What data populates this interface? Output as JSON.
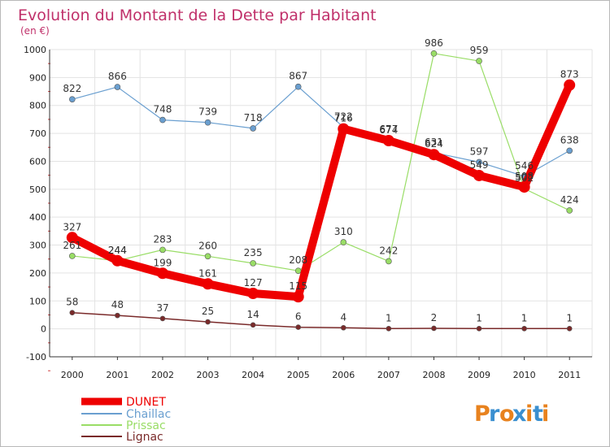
{
  "chart_data": {
    "type": "line",
    "title": "Evolution du Montant de la Dette par Habitant",
    "subtitle": "(en €)",
    "xlabel": "",
    "ylabel": "",
    "x": [
      "2000",
      "2001",
      "2002",
      "2003",
      "2004",
      "2005",
      "2006",
      "2007",
      "2008",
      "2009",
      "2010",
      "2011"
    ],
    "ylim": [
      -100,
      1000
    ],
    "yticks": [
      -100,
      0,
      100,
      200,
      300,
      400,
      500,
      600,
      700,
      800,
      900,
      1000
    ],
    "grid": true,
    "legend": "bottom-left",
    "series": [
      {
        "name": "DUNET",
        "color": "#ee0000",
        "values": [
          327,
          244,
          199,
          161,
          127,
          115,
          716,
          674,
          624,
          549,
          508,
          873
        ]
      },
      {
        "name": "Chaillac",
        "color": "#6a9fd0",
        "values": [
          822,
          866,
          748,
          739,
          718,
          867,
          722,
          677,
          631,
          597,
          546,
          638
        ]
      },
      {
        "name": "Prissac",
        "color": "#99dd66",
        "values": [
          261,
          244,
          283,
          260,
          235,
          208,
          310,
          242,
          986,
          959,
          502,
          424
        ]
      },
      {
        "name": "Lignac",
        "color": "#7a2a2a",
        "values": [
          58,
          48,
          37,
          25,
          14,
          6,
          4,
          1,
          2,
          1,
          1,
          1
        ]
      }
    ]
  },
  "logo": {
    "text": "Proxiti",
    "colors": [
      "#e8821e",
      "#3a8fd0",
      "#e8821e",
      "#3a8fd0",
      "#e8821e",
      "#3a8fd0",
      "#e8821e"
    ]
  }
}
